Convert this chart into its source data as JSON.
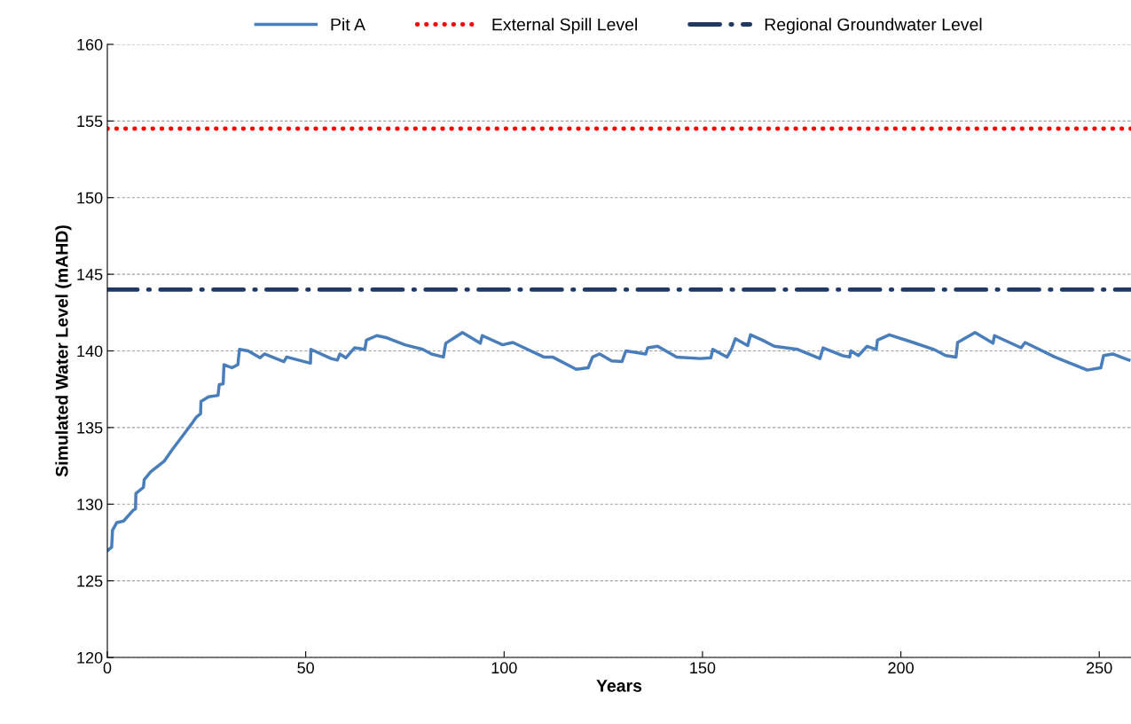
{
  "chart_data": {
    "type": "line",
    "xlabel": "Years",
    "ylabel": "Simulated Water Level (mAHD)",
    "xlim": [
      0,
      258
    ],
    "xticks": [
      0,
      50,
      100,
      150,
      200,
      250
    ],
    "ylim": [
      120,
      160
    ],
    "yticks": [
      120,
      125,
      130,
      135,
      140,
      145,
      150,
      155,
      160
    ],
    "grid": "y",
    "legend": "top",
    "marker": "none",
    "line_style": "solid",
    "series": [
      {
        "name": "Pit A",
        "color": "#4a7ebb",
        "x": [
          0.2,
          1.1,
          1.3,
          2.4,
          4.1,
          6.5,
          7.1,
          7.2,
          9.1,
          9.3,
          10.9,
          14.3,
          16.2,
          19.1,
          21.4,
          22.5,
          23.5,
          23.6,
          25.5,
          27.9,
          28.2,
          29.2,
          29.4,
          31.4,
          32.9,
          33.3,
          35.5,
          38.5,
          39.6,
          44.5,
          45.2,
          51.2,
          51.3,
          56.4,
          58.0,
          58.6,
          60.1,
          62.3,
          64.9,
          65.3,
          67.9,
          70.5,
          75.0,
          79.5,
          81.7,
          84.7,
          85.3,
          89.5,
          94.0,
          94.5,
          99.6,
          102.2,
          110.0,
          112.2,
          118.2,
          121.2,
          122.3,
          124.1,
          127.1,
          129.7,
          130.7,
          135.7,
          136.2,
          138.7,
          143.5,
          149.5,
          152.1,
          152.6,
          156.2,
          157.3,
          158.3,
          161.4,
          162.1,
          165.1,
          168.1,
          174.0,
          179.6,
          180.4,
          185.2,
          187.1,
          187.4,
          189.3,
          191.5,
          193.8,
          194.1,
          197.1,
          203.1,
          208.3,
          211.3,
          213.9,
          214.3,
          218.7,
          223.2,
          223.6,
          230.3,
          231.3,
          238.8,
          247.0,
          250.4,
          251.1,
          253.4,
          257.5
        ],
        "values": [
          127.0,
          127.2,
          128.3,
          128.8,
          128.9,
          129.6,
          129.7,
          130.7,
          131.1,
          131.6,
          132.1,
          132.8,
          133.5,
          134.5,
          135.3,
          135.7,
          135.9,
          136.7,
          137.0,
          137.1,
          137.8,
          137.85,
          139.1,
          138.9,
          139.1,
          140.1,
          140.0,
          139.55,
          139.8,
          139.3,
          139.6,
          139.2,
          140.1,
          139.5,
          139.4,
          139.8,
          139.55,
          140.2,
          140.1,
          140.7,
          141.0,
          140.85,
          140.4,
          140.1,
          139.8,
          139.6,
          140.5,
          141.2,
          140.5,
          141.0,
          140.4,
          140.55,
          139.6,
          139.6,
          138.8,
          138.9,
          139.6,
          139.8,
          139.35,
          139.3,
          140.0,
          139.8,
          140.2,
          140.3,
          139.6,
          139.5,
          139.55,
          140.1,
          139.6,
          140.1,
          140.8,
          140.35,
          141.05,
          140.7,
          140.3,
          140.1,
          139.5,
          140.2,
          139.7,
          139.6,
          140.0,
          139.7,
          140.3,
          140.1,
          140.7,
          141.05,
          140.55,
          140.1,
          139.7,
          139.6,
          140.55,
          141.2,
          140.5,
          141.0,
          140.2,
          140.55,
          139.6,
          138.75,
          138.9,
          139.7,
          139.8,
          139.4
        ]
      }
    ],
    "ref_lines": [
      {
        "axis": "y",
        "value": 154.5,
        "label": "External Spill Level",
        "color": "#ff0000",
        "line_style": "dotted"
      },
      {
        "axis": "y",
        "value": 144,
        "label": "Regional Groundwater Level",
        "color": "#1f3864",
        "line_style": "dashdot"
      }
    ]
  }
}
